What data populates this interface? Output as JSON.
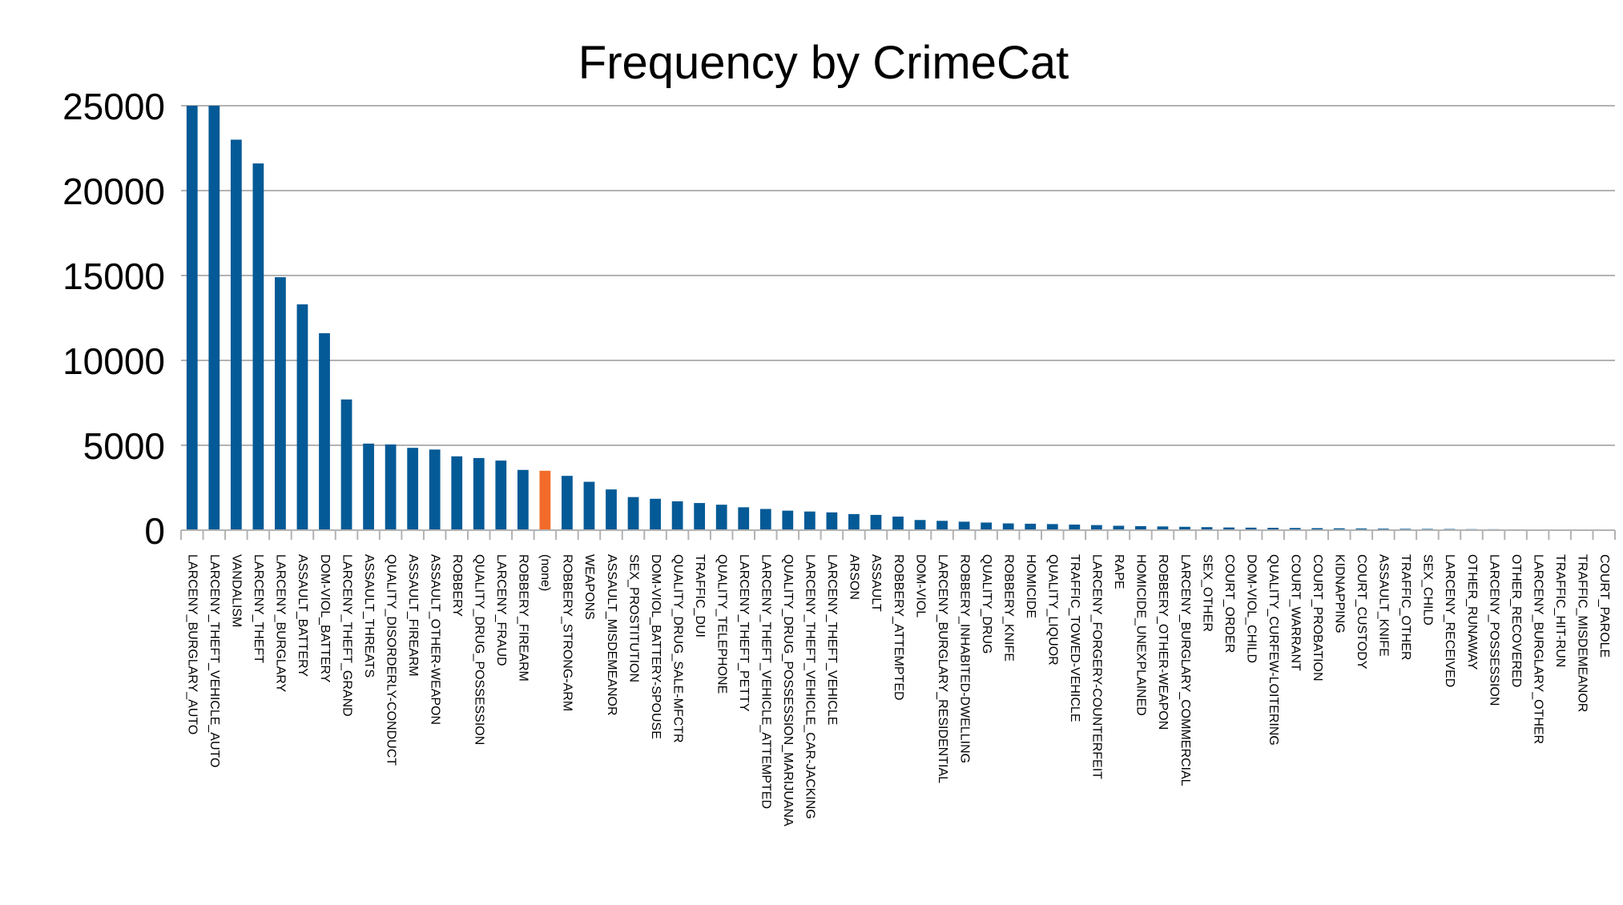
{
  "chart_data": {
    "type": "bar",
    "title": "Frequency by CrimeCat",
    "xlabel": "",
    "ylabel": "",
    "ylim": [
      0,
      25000
    ],
    "yticks": [
      0,
      5000,
      10000,
      15000,
      20000,
      25000
    ],
    "grid": true,
    "legend": "none",
    "colors": {
      "default": "#045a96",
      "highlight": "#f26b2a"
    },
    "highlight_category": "(none)",
    "categories": [
      "LARCENY_BURGLARY_AUTO",
      "LARCENY_THEFT_VEHICLE_AUTO",
      "VANDALISM",
      "LARCENY_THEFT",
      "LARCENY_BURGLARY",
      "ASSAULT_BATTERY",
      "DOM-VIOL_BATTERY",
      "LARCENY_THEFT_GRAND",
      "ASSAULT_THREATS",
      "QUALITY_DISORDERLY-CONDUCT",
      "ASSAULT_FIREARM",
      "ASSAULT_OTHER-WEAPON",
      "ROBBERY",
      "QUALITY_DRUG_POSSESSION",
      "LARCENY_FRAUD",
      "ROBBERY_FIREARM",
      "(none)",
      "ROBBERY_STRONG-ARM",
      "WEAPONS",
      "ASSAULT_MISDEMEANOR",
      "SEX_PROSTITUTION",
      "DOM-VIOL_BATTERY-SPOUSE",
      "QUALITY_DRUG_SALE-MFCTR",
      "TRAFFIC_DUI",
      "QUALITY_TELEPHONE",
      "LARCENY_THEFT_PETTY",
      "LARCENY_THEFT_VEHICLE_ATTEMPTED",
      "QUALITY_DRUG_POSSESSION_MARIJUANA",
      "LARCENY_THEFT_VEHICLE_CAR-JACKING",
      "LARCENY_THEFT_VEHICLE",
      "ARSON",
      "ASSAULT",
      "ROBBERY_ATTEMPTED",
      "DOM-VIOL",
      "LARCENY_BURGLARY_RESIDENTIAL",
      "ROBBERY_INHABITED-DWELLING",
      "QUALITY_DRUG",
      "ROBBERY_KNIFE",
      "HOMICIDE",
      "QUALITY_LIQUOR",
      "TRAFFIC_TOWED-VEHICLE",
      "LARCENY_FORGERY-COUNTERFEIT",
      "RAPE",
      "HOMICIDE_UNEXPLAINED",
      "ROBBERY_OTHER-WEAPON",
      "LARCENY_BURGLARY_COMMERCIAL",
      "SEX_OTHER",
      "COURT_ORDER",
      "DOM-VIOL_CHILD",
      "QUALITY_CURFEW-LOITERING",
      "COURT_WARRANT",
      "COURT_PROBATION",
      "KIDNAPPING",
      "COURT_CUSTODY",
      "ASSAULT_KNIFE",
      "TRAFFIC_OTHER",
      "SEX_CHILD",
      "LARCENY_RECEIVED",
      "OTHER_RUNAWAY",
      "LARCENY_POSSESSION",
      "OTHER_RECOVERED",
      "LARCENY_BURGLARY_OTHER",
      "TRAFFIC_HIT-RUN",
      "TRAFFIC_MISDEMEANOR",
      "COURT_PAROLE"
    ],
    "values": [
      25000,
      25000,
      23000,
      21600,
      14900,
      13300,
      11600,
      7700,
      5100,
      5050,
      4850,
      4750,
      4350,
      4250,
      4100,
      3550,
      3500,
      3200,
      2850,
      2400,
      1950,
      1850,
      1700,
      1600,
      1500,
      1350,
      1250,
      1150,
      1100,
      1050,
      950,
      900,
      800,
      600,
      550,
      500,
      450,
      400,
      380,
      360,
      330,
      300,
      260,
      240,
      220,
      200,
      180,
      160,
      150,
      140,
      130,
      120,
      110,
      100,
      90,
      80,
      75,
      70,
      60,
      55,
      50,
      45,
      40,
      35,
      20
    ]
  }
}
